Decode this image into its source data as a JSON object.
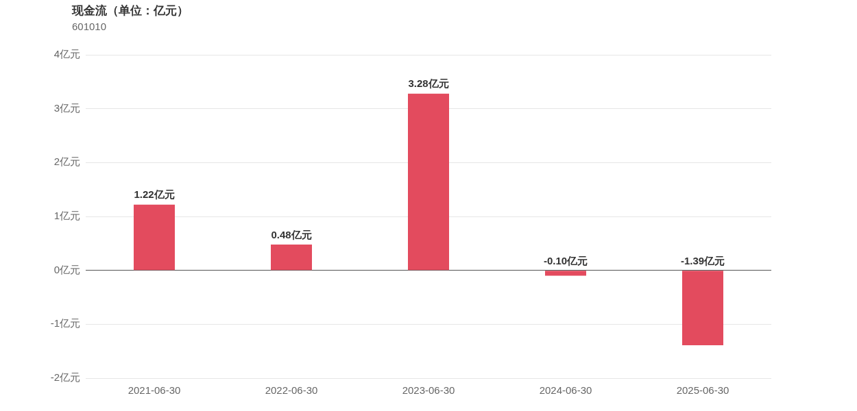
{
  "chart_data": {
    "type": "bar",
    "title": "现金流（单位：亿元）",
    "subtitle": "601010",
    "categories": [
      "2021-06-30",
      "2022-06-30",
      "2023-06-30",
      "2024-06-30",
      "2025-06-30"
    ],
    "values": [
      1.22,
      0.48,
      3.28,
      -0.1,
      -1.39
    ],
    "value_labels": [
      "1.22亿元",
      "0.48亿元",
      "3.28亿元",
      "-0.10亿元",
      "-1.39亿元"
    ],
    "color": "#e34b5e",
    "ylim": [
      -2,
      4
    ],
    "yticks": [
      {
        "value": -2,
        "label": "-2亿元"
      },
      {
        "value": -1,
        "label": "-1亿元"
      },
      {
        "value": 0,
        "label": "0亿元"
      },
      {
        "value": 1,
        "label": "1亿元"
      },
      {
        "value": 2,
        "label": "2亿元"
      },
      {
        "value": 3,
        "label": "3亿元"
      },
      {
        "value": 4,
        "label": "4亿元"
      }
    ],
    "grid": "y",
    "legend": false
  }
}
